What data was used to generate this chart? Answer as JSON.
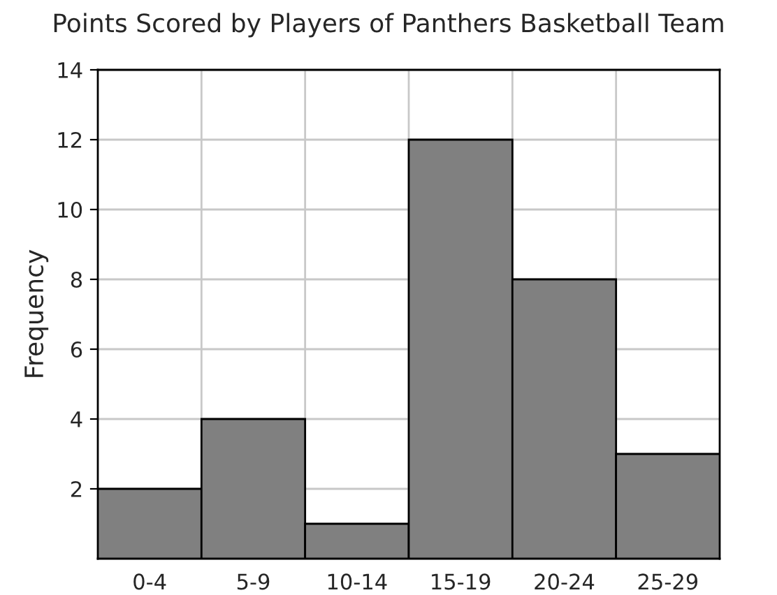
{
  "chart_data": {
    "type": "bar",
    "title": "Points Scored by Players of Panthers Basketball Team",
    "ylabel": "Frequency",
    "categories": [
      "0-4",
      "5-9",
      "10-14",
      "15-19",
      "20-24",
      "25-29"
    ],
    "values": [
      2,
      4,
      1,
      12,
      8,
      3
    ],
    "color": "#808080",
    "ylim": [
      0,
      14
    ],
    "yticks": [
      2,
      4,
      6,
      8,
      10,
      12,
      14
    ],
    "grid": true
  }
}
